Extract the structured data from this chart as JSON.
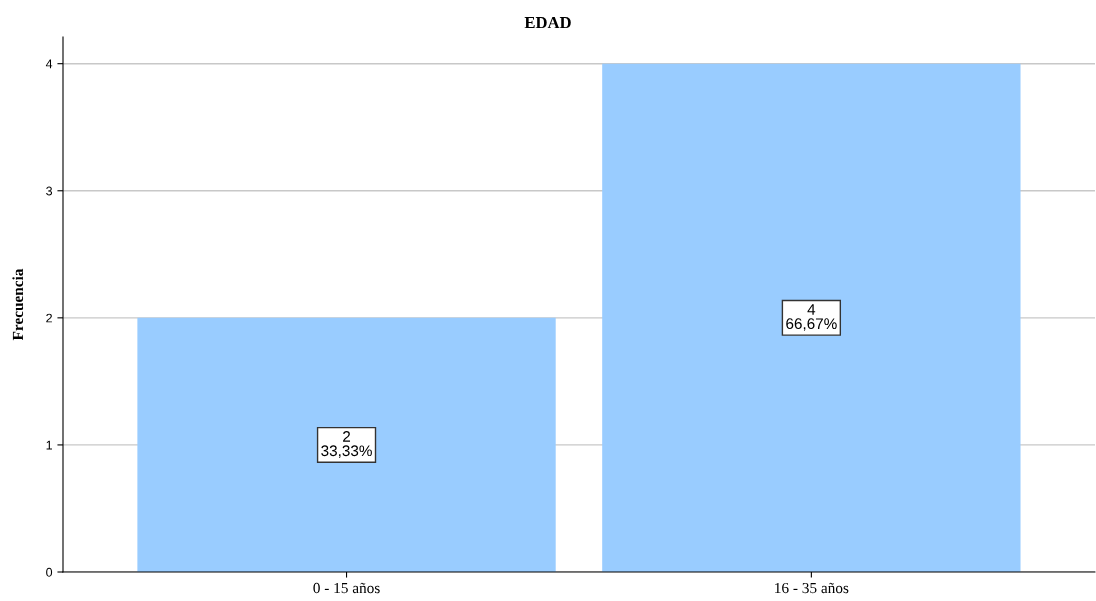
{
  "chart_data": {
    "type": "bar",
    "title": "EDAD",
    "ylabel": "Frecuencia",
    "categories": [
      "0 - 15 años",
      "16 - 35 años"
    ],
    "values": [
      2,
      4
    ],
    "color": "#99ccff",
    "value_labels": [
      "2\n33,33%",
      "4\n66,67%"
    ],
    "ylim": [
      0,
      4.21
    ],
    "yticks": [
      0,
      1,
      2,
      3,
      4
    ],
    "grid": "y"
  }
}
